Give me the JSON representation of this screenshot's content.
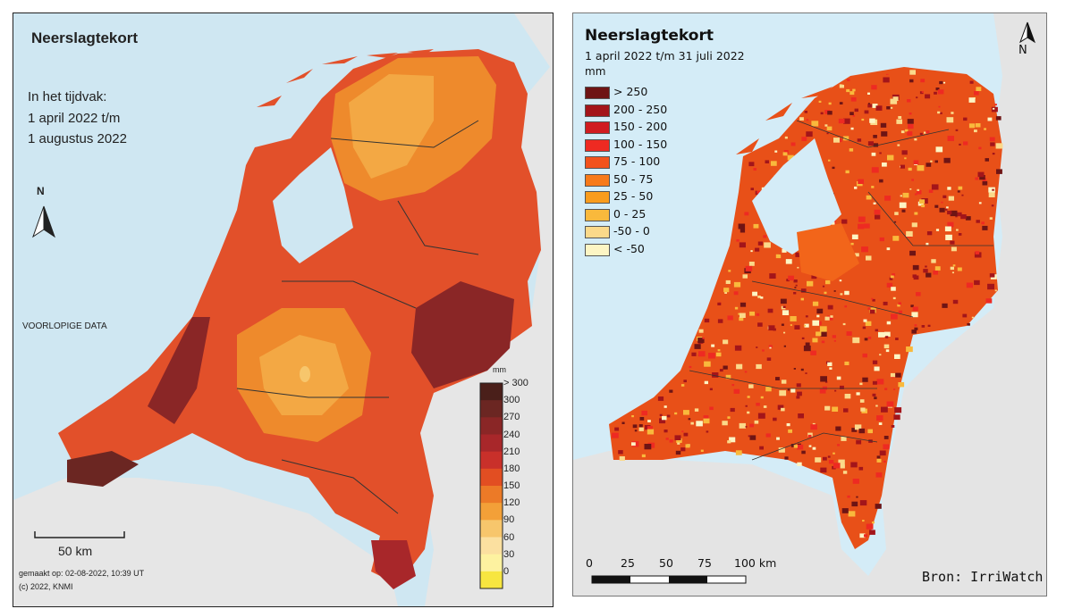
{
  "left_map": {
    "title": "Neerslagtekort",
    "period_lines": [
      "In het tijdvak:",
      "1 april 2022 t/m",
      "1 augustus 2022"
    ],
    "preliminary_note": "VOORLOPIGE DATA",
    "north_label": "N",
    "scale_label": "50 km",
    "made_on": "gemaakt op: 02-08-2022, 10:39 UT",
    "copyright": "(c) 2022, KNMI",
    "colorbar_unit": "mm",
    "colorbar_labels": [
      "> 300",
      "300",
      "270",
      "240",
      "210",
      "180",
      "150",
      "120",
      "90",
      "60",
      "30",
      "0"
    ],
    "colorbar_colors": [
      "#4a1f1a",
      "#6b2622",
      "#8a2626",
      "#a8272a",
      "#c9302a",
      "#e24e22",
      "#ec7a27",
      "#f3a038",
      "#f7c66c",
      "#fbe0a0",
      "#fdf2a0",
      "#f7e640"
    ]
  },
  "right_map": {
    "title": "Neerslagtekort",
    "period": "1 april 2022 t/m 31 juli 2022",
    "unit": "mm",
    "legend": [
      {
        "label": "> 250",
        "color": "#6e1414"
      },
      {
        "label": "200 - 250",
        "color": "#a3151a"
      },
      {
        "label": "150 - 200",
        "color": "#d01c20"
      },
      {
        "label": "100 - 150",
        "color": "#ee2a22"
      },
      {
        "label": "75 - 100",
        "color": "#f2521c"
      },
      {
        "label": "50 - 75",
        "color": "#f77a1a"
      },
      {
        "label": "25 - 50",
        "color": "#f99c1d"
      },
      {
        "label": "0 - 25",
        "color": "#f9b93c"
      },
      {
        "label": "-50 - 0",
        "color": "#fbd98a"
      },
      {
        "label": "< -50",
        "color": "#fdf5c4"
      }
    ],
    "north_label": "N",
    "scale_ticks": [
      "0",
      "25",
      "50",
      "75",
      "100 km"
    ],
    "source": "Bron: IrriWatch"
  }
}
